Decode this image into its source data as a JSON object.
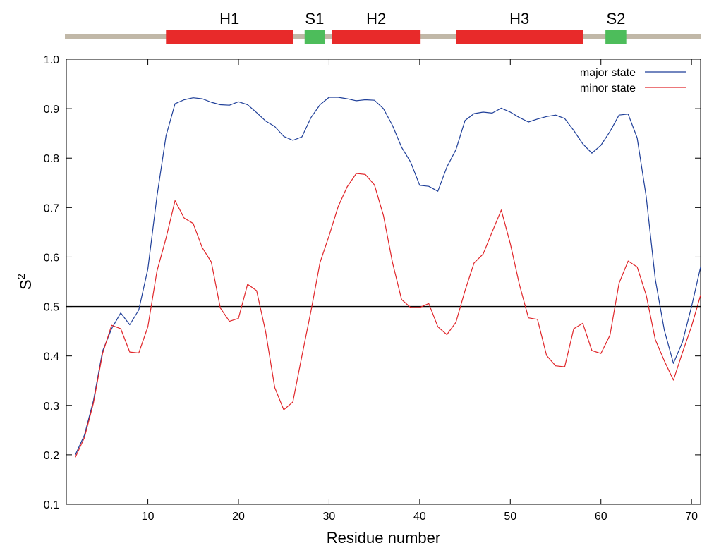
{
  "chart_data": {
    "type": "line",
    "xlabel": "Residue number",
    "ylabel": "S",
    "ylabel_sup": "2",
    "xlim": [
      1,
      71
    ],
    "ylim": [
      0.1,
      1.0
    ],
    "xticks": [
      10,
      20,
      30,
      40,
      50,
      60,
      70
    ],
    "yticks": [
      0.1,
      0.2,
      0.3,
      0.4,
      0.5,
      0.6,
      0.7,
      0.8,
      0.9,
      1.0
    ],
    "ytick_labels": [
      "0.1",
      "0.2",
      "0.3",
      "0.4",
      "0.5",
      "0.6",
      "0.7",
      "0.8",
      "0.9",
      "1.0"
    ],
    "grid": false,
    "legend_position": "top-right",
    "reference_line": {
      "y": 0.5,
      "color": "#000000"
    },
    "series": [
      {
        "name": "major state",
        "color": "#1f3f99",
        "x": [
          2,
          3,
          4,
          5,
          6,
          7,
          8,
          9,
          10,
          11,
          12,
          13,
          14,
          15,
          16,
          17,
          18,
          19,
          20,
          21,
          22,
          23,
          24,
          25,
          26,
          27,
          28,
          29,
          30,
          31,
          32,
          33,
          34,
          35,
          36,
          37,
          38,
          39,
          40,
          41,
          42,
          43,
          44,
          45,
          46,
          47,
          48,
          49,
          50,
          51,
          52,
          53,
          54,
          55,
          56,
          57,
          58,
          59,
          60,
          61,
          62,
          63,
          64,
          65,
          66,
          67,
          68,
          69,
          70,
          71
        ],
        "values": [
          0.2,
          0.24,
          0.31,
          0.41,
          0.455,
          0.487,
          0.463,
          0.493,
          0.576,
          0.722,
          0.845,
          0.91,
          0.918,
          0.922,
          0.92,
          0.913,
          0.908,
          0.907,
          0.914,
          0.908,
          0.892,
          0.875,
          0.864,
          0.844,
          0.836,
          0.843,
          0.882,
          0.908,
          0.923,
          0.923,
          0.92,
          0.916,
          0.918,
          0.917,
          0.9,
          0.866,
          0.822,
          0.792,
          0.745,
          0.743,
          0.733,
          0.782,
          0.817,
          0.876,
          0.89,
          0.893,
          0.891,
          0.901,
          0.893,
          0.882,
          0.873,
          0.879,
          0.884,
          0.887,
          0.88,
          0.856,
          0.829,
          0.81,
          0.826,
          0.854,
          0.887,
          0.889,
          0.841,
          0.722,
          0.555,
          0.452,
          0.385,
          0.428,
          0.5,
          0.58
        ]
      },
      {
        "name": "minor state",
        "color": "#e0262a",
        "x": [
          2,
          3,
          4,
          5,
          6,
          7,
          8,
          9,
          10,
          11,
          12,
          13,
          14,
          15,
          16,
          17,
          18,
          19,
          20,
          21,
          22,
          23,
          24,
          25,
          26,
          27,
          28,
          29,
          30,
          31,
          32,
          33,
          34,
          35,
          36,
          37,
          38,
          39,
          40,
          41,
          42,
          43,
          44,
          45,
          46,
          47,
          48,
          49,
          50,
          51,
          52,
          53,
          54,
          55,
          56,
          57,
          58,
          59,
          60,
          61,
          62,
          63,
          64,
          65,
          66,
          67,
          68,
          69,
          70,
          71
        ],
        "values": [
          0.195,
          0.235,
          0.305,
          0.405,
          0.462,
          0.455,
          0.408,
          0.406,
          0.459,
          0.571,
          0.638,
          0.714,
          0.679,
          0.668,
          0.619,
          0.59,
          0.497,
          0.47,
          0.476,
          0.545,
          0.532,
          0.449,
          0.336,
          0.291,
          0.307,
          0.4,
          0.491,
          0.589,
          0.643,
          0.702,
          0.742,
          0.769,
          0.767,
          0.746,
          0.684,
          0.589,
          0.514,
          0.498,
          0.498,
          0.506,
          0.459,
          0.443,
          0.468,
          0.532,
          0.588,
          0.606,
          0.651,
          0.695,
          0.627,
          0.545,
          0.477,
          0.474,
          0.401,
          0.38,
          0.378,
          0.455,
          0.466,
          0.411,
          0.405,
          0.442,
          0.547,
          0.592,
          0.58,
          0.523,
          0.433,
          0.39,
          0.351,
          0.407,
          0.46,
          0.523
        ]
      }
    ],
    "secondary_structure": {
      "track_color": "#c1b8a8",
      "elements": [
        {
          "label": "H1",
          "type": "helix",
          "start": 12,
          "end": 26,
          "color": "#e82a2a"
        },
        {
          "label": "S1",
          "type": "strand",
          "start": 27.3,
          "end": 29.5,
          "color": "#4dbd5b"
        },
        {
          "label": "H2",
          "type": "helix",
          "start": 30.3,
          "end": 40.1,
          "color": "#e82a2a"
        },
        {
          "label": "H3",
          "type": "helix",
          "start": 44,
          "end": 58,
          "color": "#e82a2a"
        },
        {
          "label": "S2",
          "type": "strand",
          "start": 60.5,
          "end": 62.8,
          "color": "#4dbd5b"
        }
      ]
    }
  }
}
